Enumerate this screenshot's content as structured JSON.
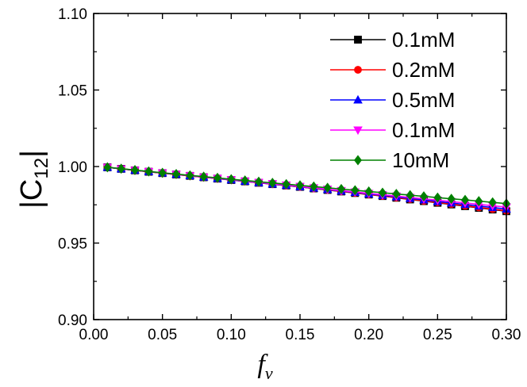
{
  "chart_data": {
    "type": "line",
    "xlabel": "f",
    "xlabel_sub": "v",
    "ylabel": "|C",
    "ylabel_sub": "12",
    "ylabel_end": "|",
    "xlim": [
      0.0,
      0.3
    ],
    "ylim": [
      0.9,
      1.1
    ],
    "x_ticks": [
      "0.00",
      "0.05",
      "0.10",
      "0.15",
      "0.20",
      "0.25",
      "0.30"
    ],
    "y_ticks": [
      "0.90",
      "0.95",
      "1.00",
      "1.05",
      "1.10"
    ],
    "grid": false,
    "legend_position": "top-right",
    "x": [
      0.01,
      0.02,
      0.03,
      0.04,
      0.05,
      0.06,
      0.07,
      0.08,
      0.09,
      0.1,
      0.11,
      0.12,
      0.13,
      0.14,
      0.15,
      0.16,
      0.17,
      0.18,
      0.19,
      0.2,
      0.21,
      0.22,
      0.23,
      0.24,
      0.25,
      0.26,
      0.27,
      0.28,
      0.29,
      0.3
    ],
    "series": [
      {
        "name": "0.1mM",
        "color": "#000000",
        "marker": "square",
        "values": [
          0.9995,
          0.9985,
          0.9975,
          0.9966,
          0.9957,
          0.9948,
          0.9939,
          0.993,
          0.9921,
          0.9912,
          0.9903,
          0.9894,
          0.9885,
          0.9876,
          0.9867,
          0.9857,
          0.9847,
          0.9837,
          0.9827,
          0.9817,
          0.9807,
          0.9796,
          0.9785,
          0.9774,
          0.9763,
          0.9752,
          0.9741,
          0.973,
          0.9719,
          0.9708
        ]
      },
      {
        "name": "0.2mM",
        "color": "#ff0000",
        "marker": "circle",
        "values": [
          0.9995,
          0.9985,
          0.9975,
          0.9966,
          0.9957,
          0.9948,
          0.9939,
          0.993,
          0.9921,
          0.9912,
          0.9903,
          0.9894,
          0.9885,
          0.9876,
          0.9867,
          0.9857,
          0.9848,
          0.9838,
          0.9828,
          0.9818,
          0.9808,
          0.9797,
          0.9787,
          0.9776,
          0.9766,
          0.9755,
          0.9744,
          0.9733,
          0.9722,
          0.9711
        ]
      },
      {
        "name": "0.5mM",
        "color": "#0000ff",
        "marker": "triangle-up",
        "values": [
          0.9995,
          0.9985,
          0.9976,
          0.9967,
          0.9958,
          0.9949,
          0.994,
          0.9931,
          0.9922,
          0.9913,
          0.9904,
          0.9895,
          0.9886,
          0.9877,
          0.9868,
          0.9859,
          0.985,
          0.984,
          0.9831,
          0.9821,
          0.9812,
          0.9802,
          0.9792,
          0.9782,
          0.9772,
          0.9762,
          0.9752,
          0.9742,
          0.9732,
          0.9722
        ]
      },
      {
        "name": "0.1mM",
        "color": "#ff00ff",
        "marker": "triangle-down",
        "values": [
          0.9995,
          0.9985,
          0.9976,
          0.9967,
          0.9958,
          0.9949,
          0.994,
          0.9931,
          0.9923,
          0.9914,
          0.9905,
          0.9896,
          0.9888,
          0.9879,
          0.987,
          0.9861,
          0.9852,
          0.9843,
          0.9834,
          0.9825,
          0.9816,
          0.9807,
          0.9798,
          0.9789,
          0.978,
          0.9771,
          0.9762,
          0.9753,
          0.9744,
          0.9735
        ]
      },
      {
        "name": "10mM",
        "color": "#008000",
        "marker": "diamond",
        "values": [
          0.9995,
          0.9986,
          0.9977,
          0.9968,
          0.9959,
          0.9951,
          0.9942,
          0.9934,
          0.9926,
          0.9917,
          0.9909,
          0.9901,
          0.9893,
          0.9885,
          0.9877,
          0.9869,
          0.9861,
          0.9853,
          0.9845,
          0.9837,
          0.9829,
          0.9821,
          0.9813,
          0.9805,
          0.9797,
          0.9789,
          0.9782,
          0.9774,
          0.9766,
          0.9758
        ]
      }
    ]
  }
}
